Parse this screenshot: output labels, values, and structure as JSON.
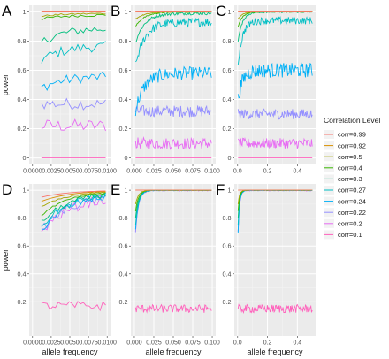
{
  "chart_data": [
    {
      "panel": "A",
      "type": "line",
      "xlim": [
        0,
        0.01
      ],
      "ylim": [
        0,
        1
      ],
      "x_ticks": [
        "0.0000",
        "0.0025",
        "0.0050",
        "0.0075",
        "0.0100"
      ],
      "y_ticks": [
        "0",
        "0.2",
        "0.4",
        "0.6",
        "0.8",
        "1"
      ],
      "xlabel": "",
      "ylabel": "power",
      "grid": true,
      "series_levels": [
        1.0,
        1.0,
        0.99,
        0.98,
        0.89,
        0.77,
        0.56,
        0.37,
        0.22,
        0.0
      ]
    },
    {
      "panel": "B",
      "type": "line",
      "xlim": [
        0,
        0.1
      ],
      "ylim": [
        0,
        1
      ],
      "x_ticks": [
        "0.000",
        "0.025",
        "0.050",
        "0.075",
        "0.100"
      ],
      "y_ticks": [
        "0",
        "0.2",
        "0.4",
        "0.6",
        "0.8",
        "1"
      ],
      "xlabel": "",
      "ylabel": "",
      "grid": true,
      "series_levels": [
        1.0,
        1.0,
        1.0,
        1.0,
        0.99,
        0.93,
        0.58,
        0.32,
        0.1,
        0.0
      ]
    },
    {
      "panel": "C",
      "type": "line",
      "xlim": [
        0,
        0.5
      ],
      "ylim": [
        0,
        1
      ],
      "x_ticks": [
        "0.0",
        "0.2",
        "0.4"
      ],
      "y_ticks": [
        "0",
        "0.2",
        "0.4",
        "0.6",
        "0.8",
        "1"
      ],
      "xlabel": "",
      "ylabel": "",
      "grid": true,
      "series_levels": [
        1.0,
        1.0,
        1.0,
        1.0,
        1.0,
        0.94,
        0.6,
        0.3,
        0.1,
        0.0
      ]
    },
    {
      "panel": "D",
      "type": "line",
      "xlim": [
        0,
        0.01
      ],
      "ylim": [
        0,
        1
      ],
      "x_ticks": [
        "0.0000",
        "0.0025",
        "0.0050",
        "0.0075",
        "0.0100"
      ],
      "y_ticks": [
        "0.2",
        "0.4",
        "0.6",
        "0.8",
        "1"
      ],
      "xlabel": "allele frequency",
      "ylabel": "power",
      "grid": true,
      "series_levels": [
        1.0,
        1.0,
        1.0,
        1.0,
        0.99,
        0.99,
        0.98,
        0.97,
        0.96,
        0.17
      ]
    },
    {
      "panel": "E",
      "type": "line",
      "xlim": [
        0,
        0.1
      ],
      "ylim": [
        0,
        1
      ],
      "x_ticks": [
        "0.000",
        "0.025",
        "0.050",
        "0.075",
        "0.100"
      ],
      "y_ticks": [
        "0.2",
        "0.4",
        "0.6",
        "0.8",
        "1"
      ],
      "xlabel": "allele frequency",
      "ylabel": "",
      "grid": true,
      "series_levels": [
        1.0,
        1.0,
        1.0,
        1.0,
        1.0,
        1.0,
        1.0,
        1.0,
        1.0,
        0.15
      ]
    },
    {
      "panel": "F",
      "type": "line",
      "xlim": [
        0,
        0.5
      ],
      "ylim": [
        0,
        1
      ],
      "x_ticks": [
        "0.0",
        "0.2",
        "0.4"
      ],
      "y_ticks": [
        "0.2",
        "0.4",
        "0.6",
        "0.8",
        "1"
      ],
      "xlabel": "allele frequency",
      "ylabel": "",
      "grid": true,
      "series_levels": [
        1.0,
        1.0,
        1.0,
        1.0,
        1.0,
        1.0,
        1.0,
        1.0,
        1.0,
        0.15
      ]
    }
  ],
  "legend": {
    "title": "Correlation Level",
    "placement": "right",
    "items": [
      {
        "label": "corr=0.99",
        "color": "#F8766D"
      },
      {
        "label": "corr=0.92",
        "color": "#D89000"
      },
      {
        "label": "corr=0.5",
        "color": "#A3A500"
      },
      {
        "label": "corr=0.4",
        "color": "#39B600"
      },
      {
        "label": "corr=0.3",
        "color": "#00BF7D"
      },
      {
        "label": "corr=0.27",
        "color": "#00BFC4"
      },
      {
        "label": "corr=0.24",
        "color": "#00B0F6"
      },
      {
        "label": "corr=0.22",
        "color": "#9590FF"
      },
      {
        "label": "corr=0.2",
        "color": "#E76BF3"
      },
      {
        "label": "corr=0.1",
        "color": "#FF62BC"
      }
    ]
  },
  "colors": {
    "panel_bg": "#EBEBEB",
    "grid": "#FFFFFF",
    "tick_text": "#4D4D4D"
  }
}
